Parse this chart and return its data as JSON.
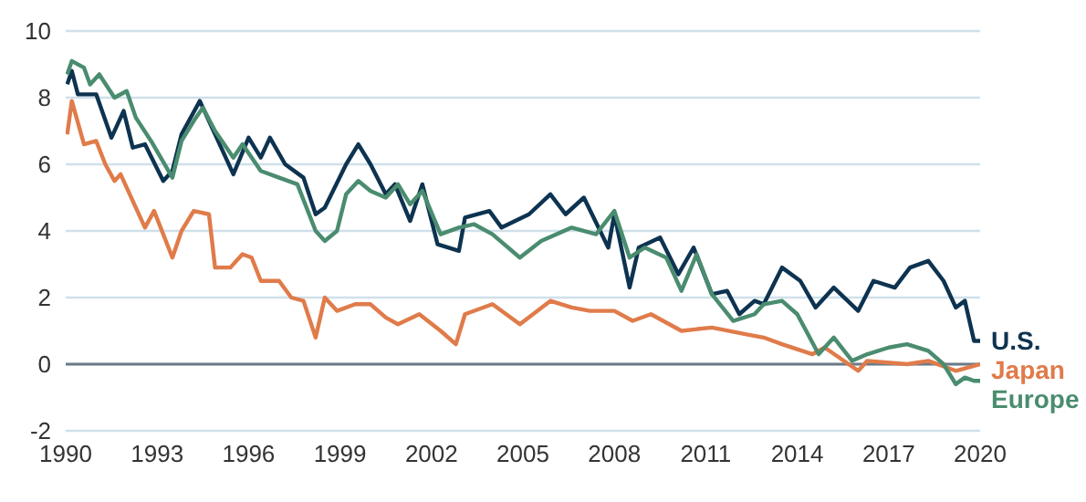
{
  "chart_data": {
    "type": "line",
    "xlim": [
      1990,
      2020
    ],
    "xticks": [
      1990,
      1993,
      1996,
      1999,
      2002,
      2005,
      2008,
      2011,
      2014,
      2017,
      2020
    ],
    "ylim": [
      -2,
      10
    ],
    "yticks": [
      -2,
      0,
      2,
      4,
      6,
      8,
      10
    ],
    "grid": "y",
    "legend": false,
    "ref_lines": [
      {
        "axis": "y",
        "value": 0,
        "color": "#6b7a88"
      }
    ],
    "series": [
      {
        "name": "U.S.",
        "color": "#0d3350",
        "x": [
          1990.05,
          1990.2,
          1990.4,
          1991.0,
          1991.5,
          1991.9,
          1992.2,
          1992.6,
          1993.2,
          1993.5,
          1993.8,
          1994.4,
          1994.9,
          1995.5,
          1996.0,
          1996.4,
          1996.7,
          1997.2,
          1997.8,
          1998.2,
          1998.5,
          1999.2,
          1999.6,
          2000.0,
          2000.5,
          2000.8,
          2001.3,
          2001.7,
          2002.2,
          2002.9,
          2003.1,
          2003.9,
          2004.3,
          2005.2,
          2005.9,
          2006.4,
          2007.0,
          2007.8,
          2008.0,
          2008.5,
          2008.8,
          2009.5,
          2010.1,
          2010.6,
          2011.2,
          2011.7,
          2012.1,
          2012.6,
          2012.9,
          2013.5,
          2014.1,
          2014.6,
          2015.2,
          2016.0,
          2016.5,
          2017.2,
          2017.7,
          2018.3,
          2018.8,
          2019.2,
          2019.5,
          2019.8,
          2020.0
        ],
        "values": [
          8.4,
          8.8,
          8.1,
          8.1,
          6.8,
          7.6,
          6.5,
          6.6,
          5.5,
          5.8,
          6.9,
          7.9,
          6.9,
          5.7,
          6.8,
          6.2,
          6.8,
          6.0,
          5.6,
          4.5,
          4.7,
          6.0,
          6.6,
          6.0,
          5.1,
          5.4,
          4.3,
          5.4,
          3.6,
          3.4,
          4.4,
          4.6,
          4.1,
          4.5,
          5.1,
          4.5,
          5.0,
          3.5,
          4.5,
          2.3,
          3.5,
          3.8,
          2.7,
          3.5,
          2.1,
          2.2,
          1.5,
          1.9,
          1.8,
          2.9,
          2.5,
          1.7,
          2.3,
          1.6,
          2.5,
          2.3,
          2.9,
          3.1,
          2.5,
          1.7,
          1.9,
          0.7,
          0.7
        ]
      },
      {
        "name": "Japan",
        "color": "#e07b4a",
        "x": [
          1990.05,
          1990.2,
          1990.6,
          1991.0,
          1991.3,
          1991.6,
          1991.8,
          1992.2,
          1992.6,
          1992.9,
          1993.5,
          1993.8,
          1994.2,
          1994.7,
          1994.9,
          1995.4,
          1995.8,
          1996.1,
          1996.4,
          1997.0,
          1997.4,
          1997.8,
          1998.2,
          1998.5,
          1998.9,
          1999.5,
          2000.0,
          2000.5,
          2000.9,
          2001.6,
          2002.3,
          2002.8,
          2003.1,
          2004.0,
          2004.9,
          2005.9,
          2006.6,
          2007.2,
          2008.0,
          2008.6,
          2009.2,
          2010.2,
          2011.2,
          2012.3,
          2012.9,
          2013.5,
          2014.5,
          2014.9,
          2016.0,
          2016.3,
          2017.6,
          2018.3,
          2019.2,
          2020.0
        ],
        "values": [
          6.9,
          7.9,
          6.6,
          6.7,
          6.0,
          5.5,
          5.7,
          4.9,
          4.1,
          4.6,
          3.2,
          4.0,
          4.6,
          4.5,
          2.9,
          2.9,
          3.3,
          3.2,
          2.5,
          2.5,
          2.0,
          1.9,
          0.8,
          2.0,
          1.6,
          1.8,
          1.8,
          1.4,
          1.2,
          1.5,
          1.0,
          0.6,
          1.5,
          1.8,
          1.2,
          1.9,
          1.7,
          1.6,
          1.6,
          1.3,
          1.5,
          1.0,
          1.1,
          0.9,
          0.8,
          0.6,
          0.3,
          0.5,
          -0.2,
          0.1,
          0.0,
          0.1,
          -0.2,
          0.0
        ]
      },
      {
        "name": "Europe",
        "color": "#4a8c6f",
        "x": [
          1990.05,
          1990.2,
          1990.6,
          1990.8,
          1991.1,
          1991.6,
          1992.0,
          1992.3,
          1992.8,
          1993.5,
          1993.8,
          1994.2,
          1994.5,
          1994.9,
          1995.5,
          1995.8,
          1996.4,
          1997.0,
          1997.6,
          1998.2,
          1998.5,
          1998.9,
          1999.2,
          1999.6,
          2000.0,
          2000.5,
          2000.9,
          2001.3,
          2001.7,
          2002.3,
          2002.9,
          2003.4,
          2004.0,
          2004.9,
          2005.6,
          2006.6,
          2007.4,
          2008.0,
          2008.5,
          2009.0,
          2009.7,
          2010.2,
          2010.7,
          2011.2,
          2011.9,
          2012.6,
          2012.9,
          2013.5,
          2014.0,
          2014.7,
          2015.2,
          2015.8,
          2016.3,
          2017.0,
          2017.6,
          2018.3,
          2018.8,
          2019.2,
          2019.5,
          2019.8,
          2020.0
        ],
        "values": [
          8.7,
          9.1,
          8.9,
          8.4,
          8.7,
          8.0,
          8.2,
          7.4,
          6.7,
          5.6,
          6.7,
          7.3,
          7.7,
          7.0,
          6.2,
          6.6,
          5.8,
          5.6,
          5.4,
          4.0,
          3.7,
          4.0,
          5.1,
          5.5,
          5.2,
          5.0,
          5.4,
          4.8,
          5.2,
          3.9,
          4.1,
          4.2,
          3.9,
          3.2,
          3.7,
          4.1,
          3.9,
          4.6,
          3.2,
          3.5,
          3.2,
          2.2,
          3.3,
          2.1,
          1.3,
          1.5,
          1.8,
          1.9,
          1.5,
          0.3,
          0.8,
          0.1,
          0.3,
          0.5,
          0.6,
          0.4,
          0.0,
          -0.6,
          -0.4,
          -0.5,
          -0.5
        ]
      }
    ]
  }
}
